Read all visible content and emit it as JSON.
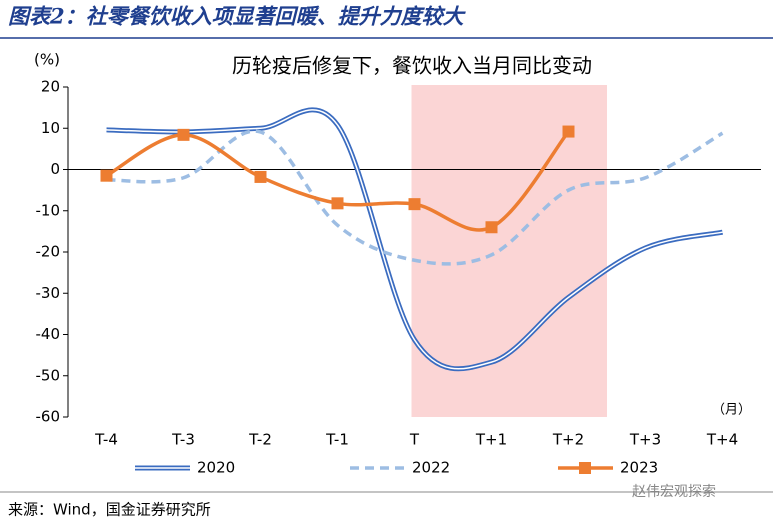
{
  "header": {
    "title": "图表2：社零餐饮收入项显著回暖、提升力度较大"
  },
  "chart_data": {
    "type": "line",
    "title": "历轮疫后修复下，餐饮收入当月同比变动",
    "y_unit": "(%)",
    "x_unit": "（月）",
    "categories": [
      "T-4",
      "T-3",
      "T-2",
      "T-1",
      "T",
      "T+1",
      "T+2",
      "T+3",
      "T+4"
    ],
    "series": [
      {
        "name": "2020",
        "color": "#3b6cc0",
        "values": [
          9.6,
          9.1,
          10,
          10.8,
          -41.3,
          -46.7,
          -31,
          -19,
          -15.2
        ]
      },
      {
        "name": "2022",
        "color": "#9dbde3",
        "values": [
          -2.5,
          -2,
          9.1,
          -13.5,
          -22,
          -20.7,
          -5,
          -2,
          8.8
        ]
      },
      {
        "name": "2023",
        "color": "#ed7d31",
        "values": [
          -1.5,
          8.4,
          -1.8,
          -8.2,
          -8.4,
          -14,
          9.2,
          null,
          null
        ]
      }
    ],
    "ylim": [
      -60,
      20
    ],
    "yticks": [
      -60,
      -50,
      -40,
      -30,
      -20,
      -10,
      0,
      10,
      20
    ]
  },
  "footer": {
    "source": "来源：Wind，国金证券研究所",
    "watermark": "赵伟宏观探索"
  }
}
